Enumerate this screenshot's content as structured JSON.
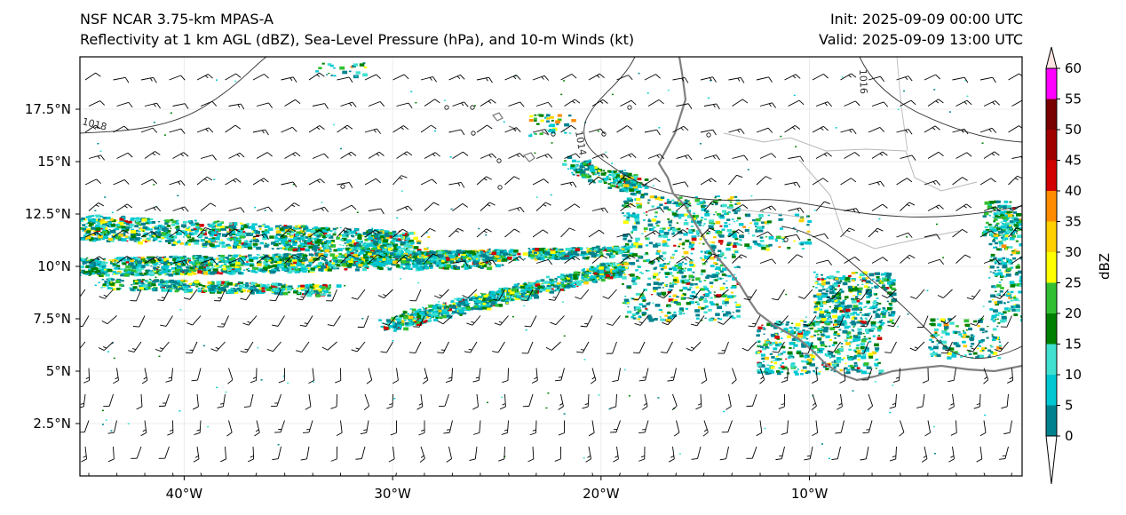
{
  "header": {
    "model_title": "NSF NCAR 3.75-km MPAS-A",
    "fields_title": "Reflectivity at 1 km AGL (dBZ), Sea-Level Pressure (hPa), and 10-m Winds (kt)",
    "init_time": "Init: 2025-09-09 00:00 UTC",
    "valid_time": "Valid: 2025-09-09 13:00 UTC"
  },
  "axes": {
    "lat_labels": [
      "17.5°N",
      "15°N",
      "12.5°N",
      "10°N",
      "7.5°N",
      "5°N",
      "2.5°N"
    ],
    "lat_values": [
      17.5,
      15,
      12.5,
      10,
      7.5,
      5,
      2.5
    ],
    "lon_labels": [
      "40°W",
      "30°W",
      "20°W",
      "10°W"
    ],
    "lon_values": [
      -40,
      -30,
      -20,
      -10
    ],
    "lon_range": [
      -45,
      0.2
    ],
    "lat_range": [
      0,
      20
    ]
  },
  "isobars": [
    {
      "label": "1018"
    },
    {
      "label": "1014"
    },
    {
      "label": "1016"
    }
  ],
  "colorbar": {
    "label": "dBZ",
    "ticks": [
      "0",
      "5",
      "10",
      "15",
      "20",
      "25",
      "30",
      "35",
      "40",
      "45",
      "50",
      "55",
      "60"
    ],
    "colors": [
      "#ffffff",
      "#00828f",
      "#00c8d2",
      "#40e0d0",
      "#008000",
      "#32c032",
      "#ffff00",
      "#ffd000",
      "#ff8c00",
      "#d20000",
      "#a00000",
      "#780000",
      "#ff00ff",
      "#ffe4e1"
    ]
  },
  "colors": {
    "coast": "#808080",
    "border": "#b0b0b0",
    "isobar": "#303030",
    "barb": "#000000"
  }
}
